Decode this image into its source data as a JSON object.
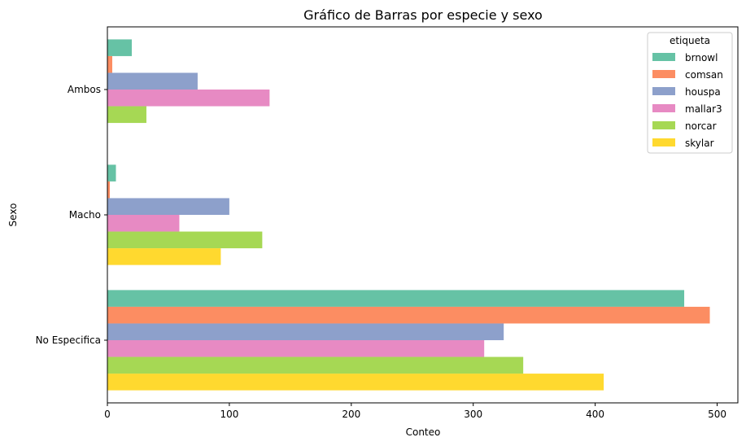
{
  "chart_data": {
    "type": "bar",
    "orientation": "horizontal",
    "title": "Gráfico de Barras por especie y sexo",
    "xlabel": "Conteo",
    "ylabel": "Sexo",
    "xlim": [
      0,
      517
    ],
    "xticks": [
      0,
      100,
      200,
      300,
      400,
      500
    ],
    "categories": [
      "Ambos",
      "Macho",
      "No Especifica"
    ],
    "legend": {
      "title": "etiqueta",
      "position": "top-right"
    },
    "series": [
      {
        "name": "brnowl",
        "color": "#66c2a5",
        "values": [
          20,
          7,
          473
        ]
      },
      {
        "name": "comsan",
        "color": "#fc8d62",
        "values": [
          4,
          2,
          494
        ]
      },
      {
        "name": "houspa",
        "color": "#8da0cb",
        "values": [
          74,
          100,
          325
        ]
      },
      {
        "name": "mallar3",
        "color": "#e78ac3",
        "values": [
          133,
          59,
          309
        ]
      },
      {
        "name": "norcar",
        "color": "#a6d854",
        "values": [
          32,
          127,
          341
        ]
      },
      {
        "name": "skylar",
        "color": "#ffd92f",
        "values": [
          null,
          93,
          407
        ]
      }
    ]
  }
}
